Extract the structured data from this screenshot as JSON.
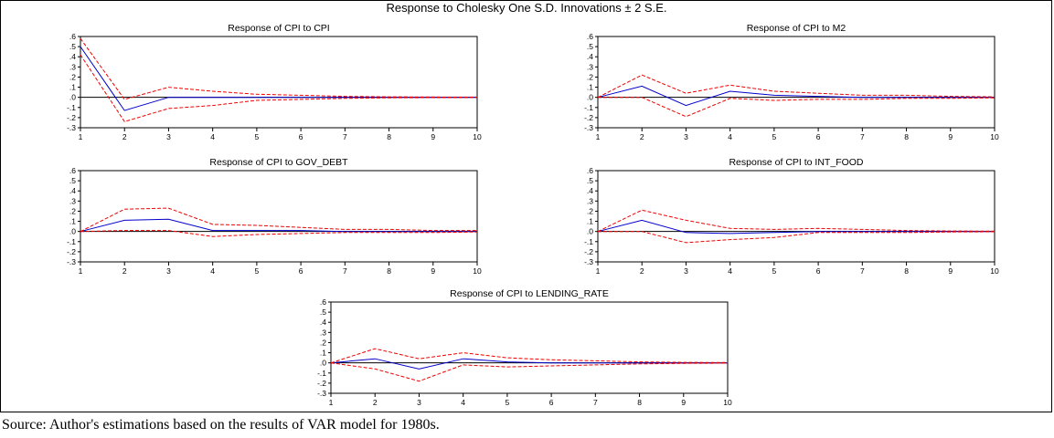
{
  "figure": {
    "title": "Response to Cholesky One S.D. Innovations ± 2 S.E.",
    "caption": "Source: Author's estimations based on the results of VAR model for 1980s."
  },
  "colors": {
    "response_line": "#0000cc",
    "band_line": "#ee0000",
    "axis": "#000000",
    "zero_line": "#000000"
  },
  "chart_data": [
    {
      "type": "line",
      "title": "Response of CPI to CPI",
      "x": [
        1,
        2,
        3,
        4,
        5,
        6,
        7,
        8,
        9,
        10
      ],
      "xticks": [
        "1",
        "2",
        "3",
        "4",
        "5",
        "6",
        "7",
        "8",
        "9",
        "10"
      ],
      "yticks": [
        ".6",
        ".5",
        ".4",
        ".3",
        ".2",
        ".1",
        ".0",
        "-.1",
        "-.2",
        "-.3"
      ],
      "ylim": [
        -0.3,
        0.6
      ],
      "grid": false,
      "series": [
        {
          "role": "response",
          "values": [
            0.5,
            -0.13,
            0.0,
            0.0,
            0.0,
            0.0,
            0.0,
            0.0,
            0.0,
            0.0
          ]
        },
        {
          "role": "upper",
          "values": [
            0.58,
            -0.02,
            0.1,
            0.06,
            0.03,
            0.02,
            0.01,
            0.005,
            0.003,
            0.002
          ]
        },
        {
          "role": "lower",
          "values": [
            0.42,
            -0.24,
            -0.11,
            -0.08,
            -0.03,
            -0.02,
            -0.01,
            -0.005,
            -0.003,
            -0.002
          ]
        }
      ]
    },
    {
      "type": "line",
      "title": "Response of CPI to M2",
      "x": [
        1,
        2,
        3,
        4,
        5,
        6,
        7,
        8,
        9,
        10
      ],
      "xticks": [
        "1",
        "2",
        "3",
        "4",
        "5",
        "6",
        "7",
        "8",
        "9",
        "10"
      ],
      "yticks": [
        ".6",
        ".5",
        ".4",
        ".3",
        ".2",
        ".1",
        ".0",
        "-.1",
        "-.2",
        "-.3"
      ],
      "ylim": [
        -0.3,
        0.6
      ],
      "grid": false,
      "series": [
        {
          "role": "response",
          "values": [
            0.0,
            0.11,
            -0.08,
            0.06,
            0.02,
            0.01,
            0.0,
            0.0,
            0.0,
            0.0
          ]
        },
        {
          "role": "upper",
          "values": [
            0.0,
            0.22,
            0.04,
            0.12,
            0.06,
            0.04,
            0.02,
            0.02,
            0.01,
            0.005
          ]
        },
        {
          "role": "lower",
          "values": [
            0.0,
            0.0,
            -0.19,
            -0.01,
            -0.03,
            -0.02,
            -0.02,
            -0.01,
            -0.01,
            -0.005
          ]
        }
      ]
    },
    {
      "type": "line",
      "title": "Response of CPI to GOV_DEBT",
      "x": [
        1,
        2,
        3,
        4,
        5,
        6,
        7,
        8,
        9,
        10
      ],
      "xticks": [
        "1",
        "2",
        "3",
        "4",
        "5",
        "6",
        "7",
        "8",
        "9",
        "10"
      ],
      "yticks": [
        ".6",
        ".5",
        ".4",
        ".3",
        ".2",
        ".1",
        ".0",
        "-.1",
        "-.2",
        "-.3"
      ],
      "ylim": [
        -0.3,
        0.6
      ],
      "grid": false,
      "series": [
        {
          "role": "response",
          "values": [
            0.0,
            0.11,
            0.12,
            0.01,
            0.01,
            0.01,
            0.0,
            0.0,
            0.0,
            0.0
          ]
        },
        {
          "role": "upper",
          "values": [
            0.0,
            0.22,
            0.23,
            0.07,
            0.06,
            0.04,
            0.02,
            0.02,
            0.01,
            0.01
          ]
        },
        {
          "role": "lower",
          "values": [
            0.0,
            0.01,
            0.01,
            -0.05,
            -0.03,
            -0.02,
            -0.01,
            -0.01,
            -0.01,
            -0.005
          ]
        }
      ]
    },
    {
      "type": "line",
      "title": "Response of CPI to INT_FOOD",
      "x": [
        1,
        2,
        3,
        4,
        5,
        6,
        7,
        8,
        9,
        10
      ],
      "xticks": [
        "1",
        "2",
        "3",
        "4",
        "5",
        "6",
        "7",
        "8",
        "9",
        "10"
      ],
      "yticks": [
        ".6",
        ".5",
        ".4",
        ".3",
        ".2",
        ".1",
        ".0",
        "-.1",
        "-.2",
        "-.3"
      ],
      "ylim": [
        -0.3,
        0.6
      ],
      "grid": false,
      "series": [
        {
          "role": "response",
          "values": [
            0.0,
            0.11,
            -0.01,
            -0.02,
            -0.01,
            0.0,
            0.0,
            0.0,
            0.0,
            0.0
          ]
        },
        {
          "role": "upper",
          "values": [
            0.0,
            0.21,
            0.11,
            0.03,
            0.02,
            0.03,
            0.02,
            0.01,
            0.005,
            0.003
          ]
        },
        {
          "role": "lower",
          "values": [
            0.0,
            0.0,
            -0.11,
            -0.08,
            -0.06,
            -0.01,
            -0.01,
            -0.01,
            -0.005,
            -0.003
          ]
        }
      ]
    },
    {
      "type": "line",
      "title": "Response of CPI to LENDING_RATE",
      "x": [
        1,
        2,
        3,
        4,
        5,
        6,
        7,
        8,
        9,
        10
      ],
      "xticks": [
        "1",
        "2",
        "3",
        "4",
        "5",
        "6",
        "7",
        "8",
        "9",
        "10"
      ],
      "yticks": [
        ".6",
        ".5",
        ".4",
        ".3",
        ".2",
        ".1",
        ".0",
        "-.1",
        "-.2",
        "-.3"
      ],
      "ylim": [
        -0.3,
        0.6
      ],
      "grid": false,
      "series": [
        {
          "role": "response",
          "values": [
            0.0,
            0.04,
            -0.06,
            0.04,
            0.01,
            0.0,
            0.0,
            0.0,
            0.0,
            0.0
          ]
        },
        {
          "role": "upper",
          "values": [
            0.0,
            0.14,
            0.04,
            0.1,
            0.05,
            0.03,
            0.02,
            0.01,
            0.005,
            0.003
          ]
        },
        {
          "role": "lower",
          "values": [
            0.0,
            -0.06,
            -0.18,
            -0.02,
            -0.04,
            -0.03,
            -0.02,
            -0.01,
            -0.005,
            -0.003
          ]
        }
      ]
    }
  ]
}
